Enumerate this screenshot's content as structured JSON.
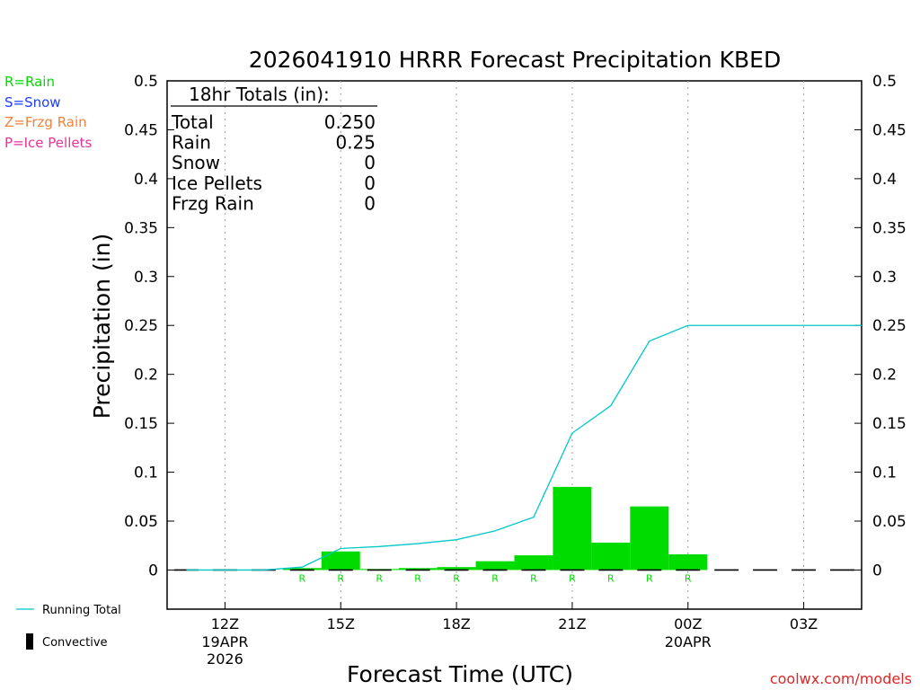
{
  "chart_data": {
    "type": "bar",
    "title": "2026041910 HRRR Forecast Precipitation KBED",
    "ylabel": "Precipitation (in)",
    "xlabel": "Forecast Time (UTC)",
    "ylim": [
      -0.04,
      0.5
    ],
    "yticks": [
      0,
      0.05,
      0.1,
      0.15,
      0.2,
      0.25,
      0.3,
      0.35,
      0.4,
      0.45,
      0.5
    ],
    "ytick_labels": [
      "0",
      "0.05",
      "0.1",
      "0.15",
      "0.2",
      "0.25",
      "0.3",
      "0.35",
      "0.4",
      "0.45",
      "0.5"
    ],
    "xlim_hours": [
      10.5,
      28.5
    ],
    "xticks": [
      {
        "hour": 12,
        "label": "12Z",
        "date": "19APR",
        "year": "2026"
      },
      {
        "hour": 15,
        "label": "15Z",
        "date": "",
        "year": ""
      },
      {
        "hour": 18,
        "label": "18Z",
        "date": "",
        "year": ""
      },
      {
        "hour": 21,
        "label": "21Z",
        "date": "",
        "year": ""
      },
      {
        "hour": 24,
        "label": "00Z",
        "date": "20APR",
        "year": ""
      },
      {
        "hour": 27,
        "label": "03Z",
        "date": "",
        "year": ""
      }
    ],
    "grid": "vertical dotted at labeled hours",
    "bars": {
      "hours": [
        11,
        12,
        13,
        14,
        15,
        16,
        17,
        18,
        19,
        20,
        21,
        22,
        23,
        24,
        25,
        26,
        27,
        28
      ],
      "values": [
        0,
        0,
        0,
        0.002,
        0.019,
        0.001,
        0.002,
        0.003,
        0.009,
        0.015,
        0.085,
        0.028,
        0.065,
        0.016,
        0,
        0,
        0,
        0
      ],
      "ptype": [
        "",
        "",
        "",
        "R",
        "R",
        "R",
        "R",
        "R",
        "R",
        "R",
        "R",
        "R",
        "R",
        "R",
        "",
        "",
        "",
        ""
      ]
    },
    "running_total": {
      "name": "Running Total",
      "hours": [
        11,
        12,
        13,
        14,
        15,
        16,
        17,
        18,
        19,
        20,
        21,
        22,
        23,
        24,
        25,
        26,
        27,
        28,
        28.5
      ],
      "values": [
        0,
        0,
        0,
        0.003,
        0.022,
        0.024,
        0.027,
        0.031,
        0.04,
        0.054,
        0.14,
        0.168,
        0.234,
        0.25,
        0.25,
        0.25,
        0.25,
        0.25,
        0.25
      ]
    },
    "colors": {
      "rain": "#00dc00",
      "snow": "#1e3cff",
      "frzg_rain": "#f0823c",
      "ice_pellets": "#e6329b",
      "running_total": "#00c8c8",
      "convective": "#000000"
    },
    "legend_left": {
      "rain": "R=Rain",
      "snow": "S=Snow",
      "frzg_rain": "Z=Frzg Rain",
      "ice_pellets": "P=Ice Pellets"
    },
    "legend_bottom": {
      "running_total": "Running Total",
      "convective": "Convective"
    },
    "totals_box": {
      "heading": "18hr Totals (in):",
      "rows": [
        {
          "label": "Total",
          "value": "0.250"
        },
        {
          "label": "Rain",
          "value": "0.25"
        },
        {
          "label": "Snow",
          "value": "0"
        },
        {
          "label": "Ice Pellets",
          "value": "0"
        },
        {
          "label": "Frzg Rain",
          "value": "0"
        }
      ]
    },
    "credit": "coolwx.com/models"
  }
}
